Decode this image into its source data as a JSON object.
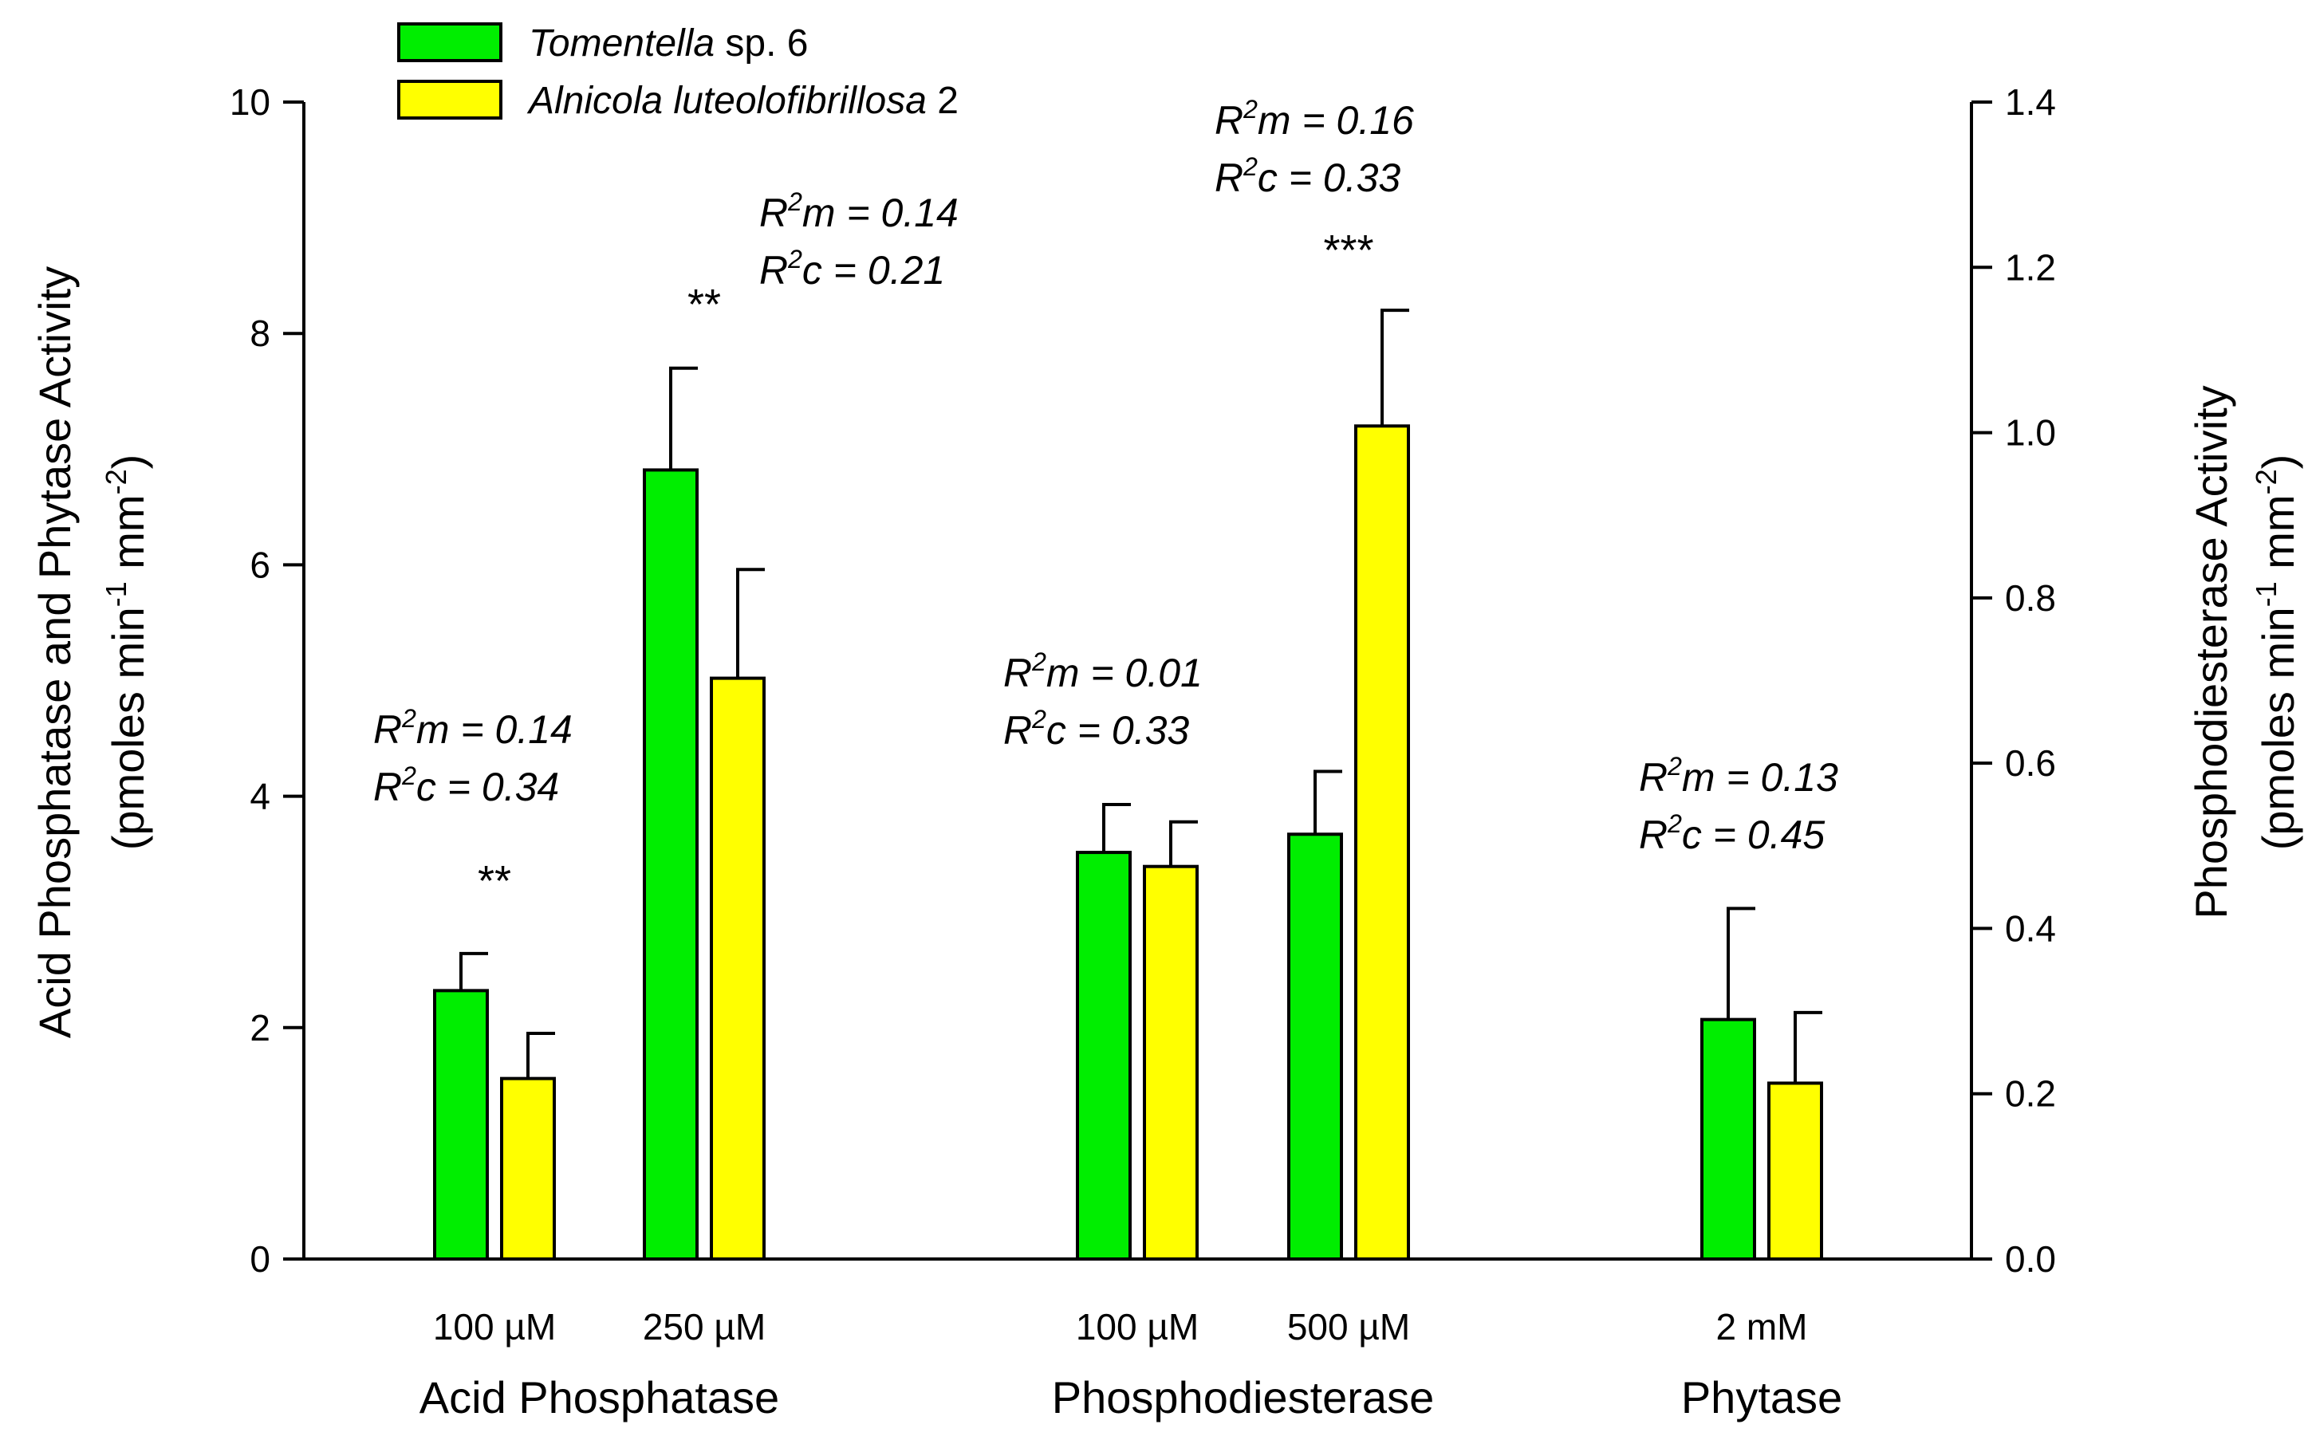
{
  "chart_data": {
    "type": "bar",
    "y_axis_left": {
      "label_line1": "Acid Phosphatase and Phytase Activity",
      "label_line2_main": "(pmoles min",
      "label_line2_sup1": "-1",
      "label_line2_mid": " mm",
      "label_line2_sup2": "-2",
      "label_line2_end": ")",
      "range": [
        0,
        10
      ],
      "ticks": [
        "0",
        "2",
        "4",
        "6",
        "8",
        "10"
      ],
      "tick_values": [
        0,
        2,
        4,
        6,
        8,
        10
      ]
    },
    "y_axis_right": {
      "label_line1": "Phosphodiesterase Activity",
      "label_line2_main": "(pmoles min",
      "label_line2_sup1": "-1",
      "label_line2_mid": " mm",
      "label_line2_sup2": "-2",
      "label_line2_end": ")",
      "range": [
        0,
        1.4
      ],
      "ticks": [
        "0.0",
        "0.2",
        "0.4",
        "0.6",
        "0.8",
        "1.0",
        "1.2",
        "1.4"
      ],
      "tick_values": [
        0,
        0.2,
        0.4,
        0.6,
        0.8,
        1.0,
        1.2,
        1.4
      ]
    },
    "legend": [
      {
        "italic": "Tomentella",
        "plain": " sp. 6",
        "color": "#00ee00"
      },
      {
        "italic": "Alnicola luteolofibrillosa",
        "plain": " 2",
        "color": "#ffff00"
      }
    ],
    "groups": [
      {
        "name": "Acid Phosphatase",
        "axis": "left"
      },
      {
        "name": "Phosphodiesterase",
        "axis": "right"
      },
      {
        "name": "Phytase",
        "axis": "left"
      }
    ],
    "categories": [
      {
        "concentration": "100 µM",
        "group": 0,
        "axis": "left",
        "tomentella": {
          "value": 2.32,
          "error": 0.32
        },
        "alnicola": {
          "value": 1.56,
          "error": 0.39
        },
        "stars": "**",
        "r2m_label": "m = 0.14",
        "r2c_label": "c = 0.34"
      },
      {
        "concentration": "250 µM",
        "group": 0,
        "axis": "left",
        "tomentella": {
          "value": 6.82,
          "error": 0.88
        },
        "alnicola": {
          "value": 5.02,
          "error": 0.94
        },
        "stars": "**",
        "r2m_label": "m = 0.14",
        "r2c_label": "c = 0.21"
      },
      {
        "concentration": "100 µM",
        "group": 1,
        "axis": "right",
        "tomentella": {
          "value": 0.492,
          "error": 0.058
        },
        "alnicola": {
          "value": 0.475,
          "error": 0.054
        },
        "stars": "",
        "r2m_label": "m = 0.01",
        "r2c_label": "c = 0.33"
      },
      {
        "concentration": "500 µM",
        "group": 1,
        "axis": "right",
        "tomentella": {
          "value": 0.514,
          "error": 0.076
        },
        "alnicola": {
          "value": 1.008,
          "error": 0.14
        },
        "stars": "***",
        "r2m_label": "m = 0.16",
        "r2c_label": "c = 0.33"
      },
      {
        "concentration": "2 mM",
        "group": 2,
        "axis": "left",
        "tomentella": {
          "value": 2.07,
          "error": 0.96
        },
        "alnicola": {
          "value": 1.52,
          "error": 0.61
        },
        "stars": "",
        "r2m_label": "m = 0.13",
        "r2c_label": "c = 0.45"
      }
    ],
    "r2_prefix": "R",
    "r2_sup": "2"
  }
}
